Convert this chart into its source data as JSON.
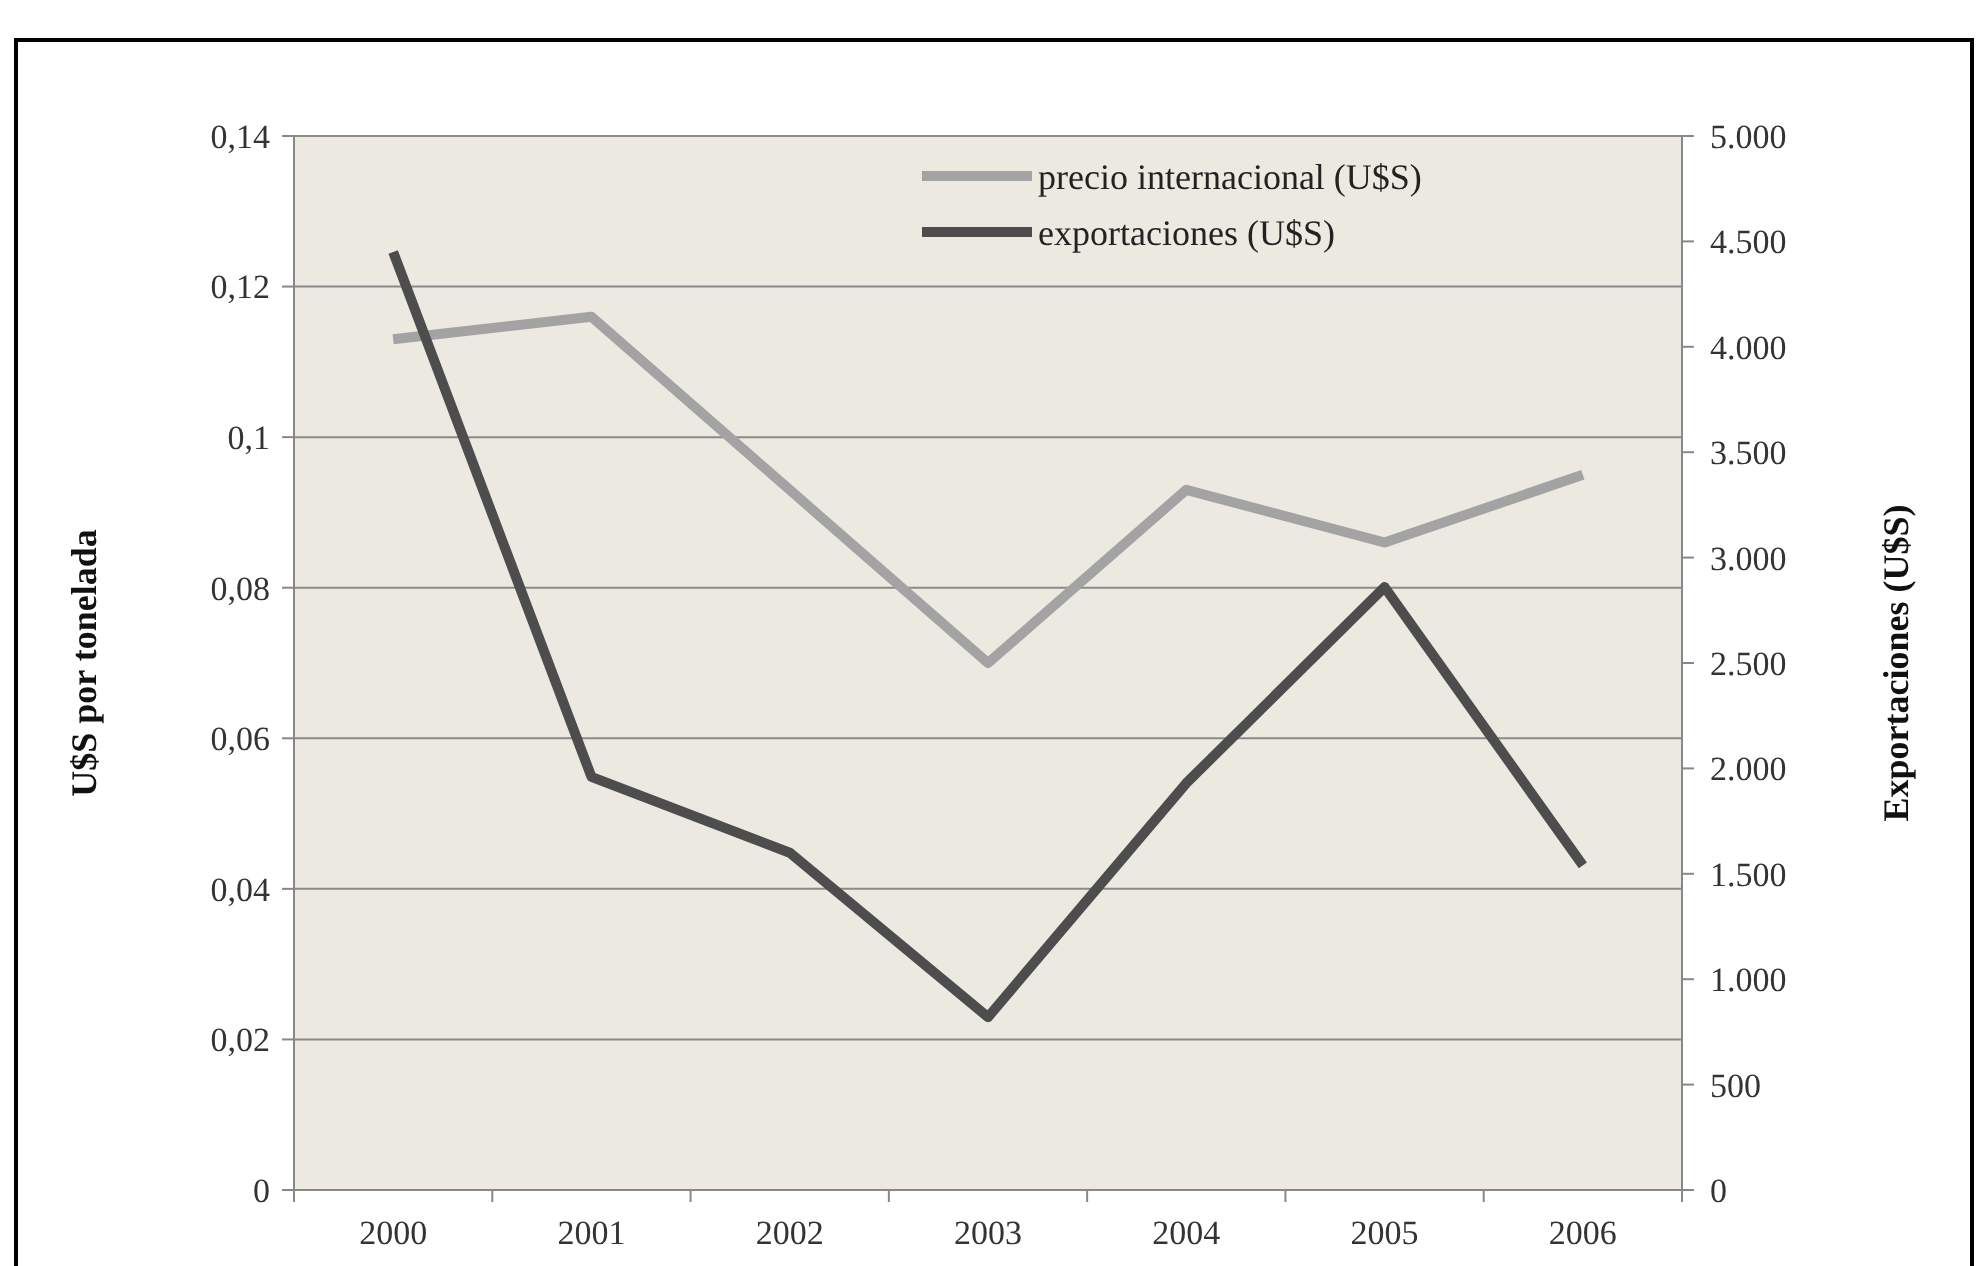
{
  "chart_data": {
    "type": "line",
    "ylabel": "U$S por tonelada",
    "y2label": "Exportaciones (U$S)",
    "categories": [
      "2000",
      "2001",
      "2002",
      "2003",
      "2004",
      "2005",
      "2006"
    ],
    "series": [
      {
        "name": "precio internacional (U$S)",
        "color": "#a3a3a3",
        "values": [
          0.113,
          0.116,
          0.093,
          0.07,
          0.093,
          0.086,
          0.095
        ]
      },
      {
        "name": "exportaciones (U$S)",
        "color": "#4d4d4d",
        "axis": "y2",
        "values": [
          4450,
          1960,
          1600,
          820,
          1930,
          2860,
          1540
        ]
      }
    ],
    "ylim": [
      0,
      0.14
    ],
    "yticks": [
      0,
      {
        "value": 0.02,
        "label": "0,02"
      },
      {
        "value": 0.04,
        "label": "0,04"
      },
      {
        "value": 0.06,
        "label": "0,06"
      },
      {
        "value": 0.08,
        "label": "0,08"
      },
      {
        "value": 0.1,
        "label": "0,1"
      },
      {
        "value": 0.12,
        "label": "0,12"
      },
      {
        "value": 0.14,
        "label": "0,14"
      }
    ],
    "y2lim": [
      0,
      5000
    ],
    "y2ticks": [
      0,
      500,
      {
        "value": 1000,
        "label": "1.000"
      },
      {
        "value": 1500,
        "label": "1.500"
      },
      {
        "value": 2000,
        "label": "2.000"
      },
      {
        "value": 2500,
        "label": "2.500"
      },
      {
        "value": 3000,
        "label": "3.000"
      },
      {
        "value": 3500,
        "label": "3.500"
      },
      {
        "value": 4000,
        "label": "4.000"
      },
      {
        "value": 4500,
        "label": "4.500"
      },
      {
        "value": 5000,
        "label": "5.000"
      }
    ],
    "grid": "y",
    "legend": "top right",
    "line_style": "solid",
    "marker": "none"
  }
}
